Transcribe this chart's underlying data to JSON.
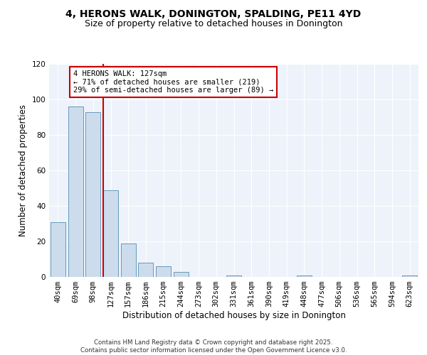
{
  "title1": "4, HERONS WALK, DONINGTON, SPALDING, PE11 4YD",
  "title2": "Size of property relative to detached houses in Donington",
  "xlabel": "Distribution of detached houses by size in Donington",
  "ylabel": "Number of detached properties",
  "categories": [
    "40sqm",
    "69sqm",
    "98sqm",
    "127sqm",
    "157sqm",
    "186sqm",
    "215sqm",
    "244sqm",
    "273sqm",
    "302sqm",
    "331sqm",
    "361sqm",
    "390sqm",
    "419sqm",
    "448sqm",
    "477sqm",
    "506sqm",
    "536sqm",
    "565sqm",
    "594sqm",
    "623sqm"
  ],
  "values": [
    31,
    96,
    93,
    49,
    19,
    8,
    6,
    3,
    0,
    0,
    1,
    0,
    0,
    0,
    1,
    0,
    0,
    0,
    0,
    0,
    1
  ],
  "bar_color": "#cddcec",
  "bar_edge_color": "#6699bb",
  "vline_color": "#cc0000",
  "vline_at_index": 3,
  "annotation_text": "4 HERONS WALK: 127sqm\n← 71% of detached houses are smaller (219)\n29% of semi-detached houses are larger (89) →",
  "annotation_box_edgecolor": "#cc0000",
  "ylim": [
    0,
    120
  ],
  "yticks": [
    0,
    20,
    40,
    60,
    80,
    100,
    120
  ],
  "background_color": "#eef2fa",
  "grid_color": "#ffffff",
  "footer_text": "Contains HM Land Registry data © Crown copyright and database right 2025.\nContains public sector information licensed under the Open Government Licence v3.0.",
  "title1_fontsize": 10,
  "title2_fontsize": 9,
  "xlabel_fontsize": 8.5,
  "ylabel_fontsize": 8.5,
  "annot_fontsize": 7.5,
  "tick_fontsize": 7.5
}
